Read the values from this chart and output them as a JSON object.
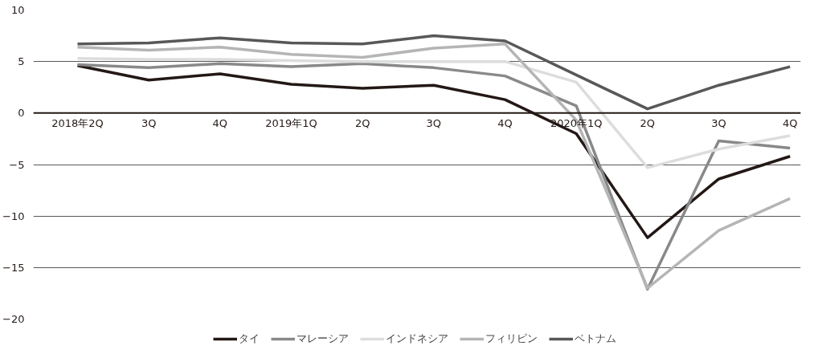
{
  "chart_data": {
    "type": "line",
    "categories": [
      "2018年2Q",
      "3Q",
      "4Q",
      "2019年1Q",
      "2Q",
      "3Q",
      "4Q",
      "2020年1Q",
      "2Q",
      "3Q",
      "4Q"
    ],
    "series": [
      {
        "name": "タイ",
        "color": "#231815",
        "values": [
          4.6,
          3.2,
          3.8,
          2.8,
          2.4,
          2.7,
          1.3,
          -2.0,
          -12.1,
          -6.4,
          -4.2
        ]
      },
      {
        "name": "マレーシア",
        "color": "#898989",
        "values": [
          4.7,
          4.4,
          4.8,
          4.5,
          4.8,
          4.4,
          3.6,
          0.7,
          -17.1,
          -2.7,
          -3.4
        ]
      },
      {
        "name": "インドネシア",
        "color": "#dcdddd",
        "values": [
          5.3,
          5.2,
          5.2,
          5.1,
          5.0,
          5.0,
          5.0,
          3.0,
          -5.3,
          -3.5,
          -2.2
        ]
      },
      {
        "name": "フィリピン",
        "color": "#b5b5b6",
        "values": [
          6.4,
          6.1,
          6.4,
          5.7,
          5.4,
          6.3,
          6.7,
          -0.7,
          -17.0,
          -11.4,
          -8.3
        ]
      },
      {
        "name": "ベトナム",
        "color": "#595757",
        "values": [
          6.7,
          6.8,
          7.3,
          6.8,
          6.7,
          7.5,
          7.0,
          3.7,
          0.4,
          2.7,
          4.5
        ]
      }
    ],
    "ylim": [
      -20,
      10
    ],
    "yticks": [
      10,
      5,
      0,
      {
        "value": -5,
        "label": "−5"
      },
      {
        "value": -10,
        "label": "−10"
      },
      {
        "value": -15,
        "label": "−15"
      },
      {
        "value": -20,
        "label": "−20"
      }
    ],
    "grid": "y",
    "legend": "bottom",
    "marker": "none",
    "line_style": "solid"
  }
}
